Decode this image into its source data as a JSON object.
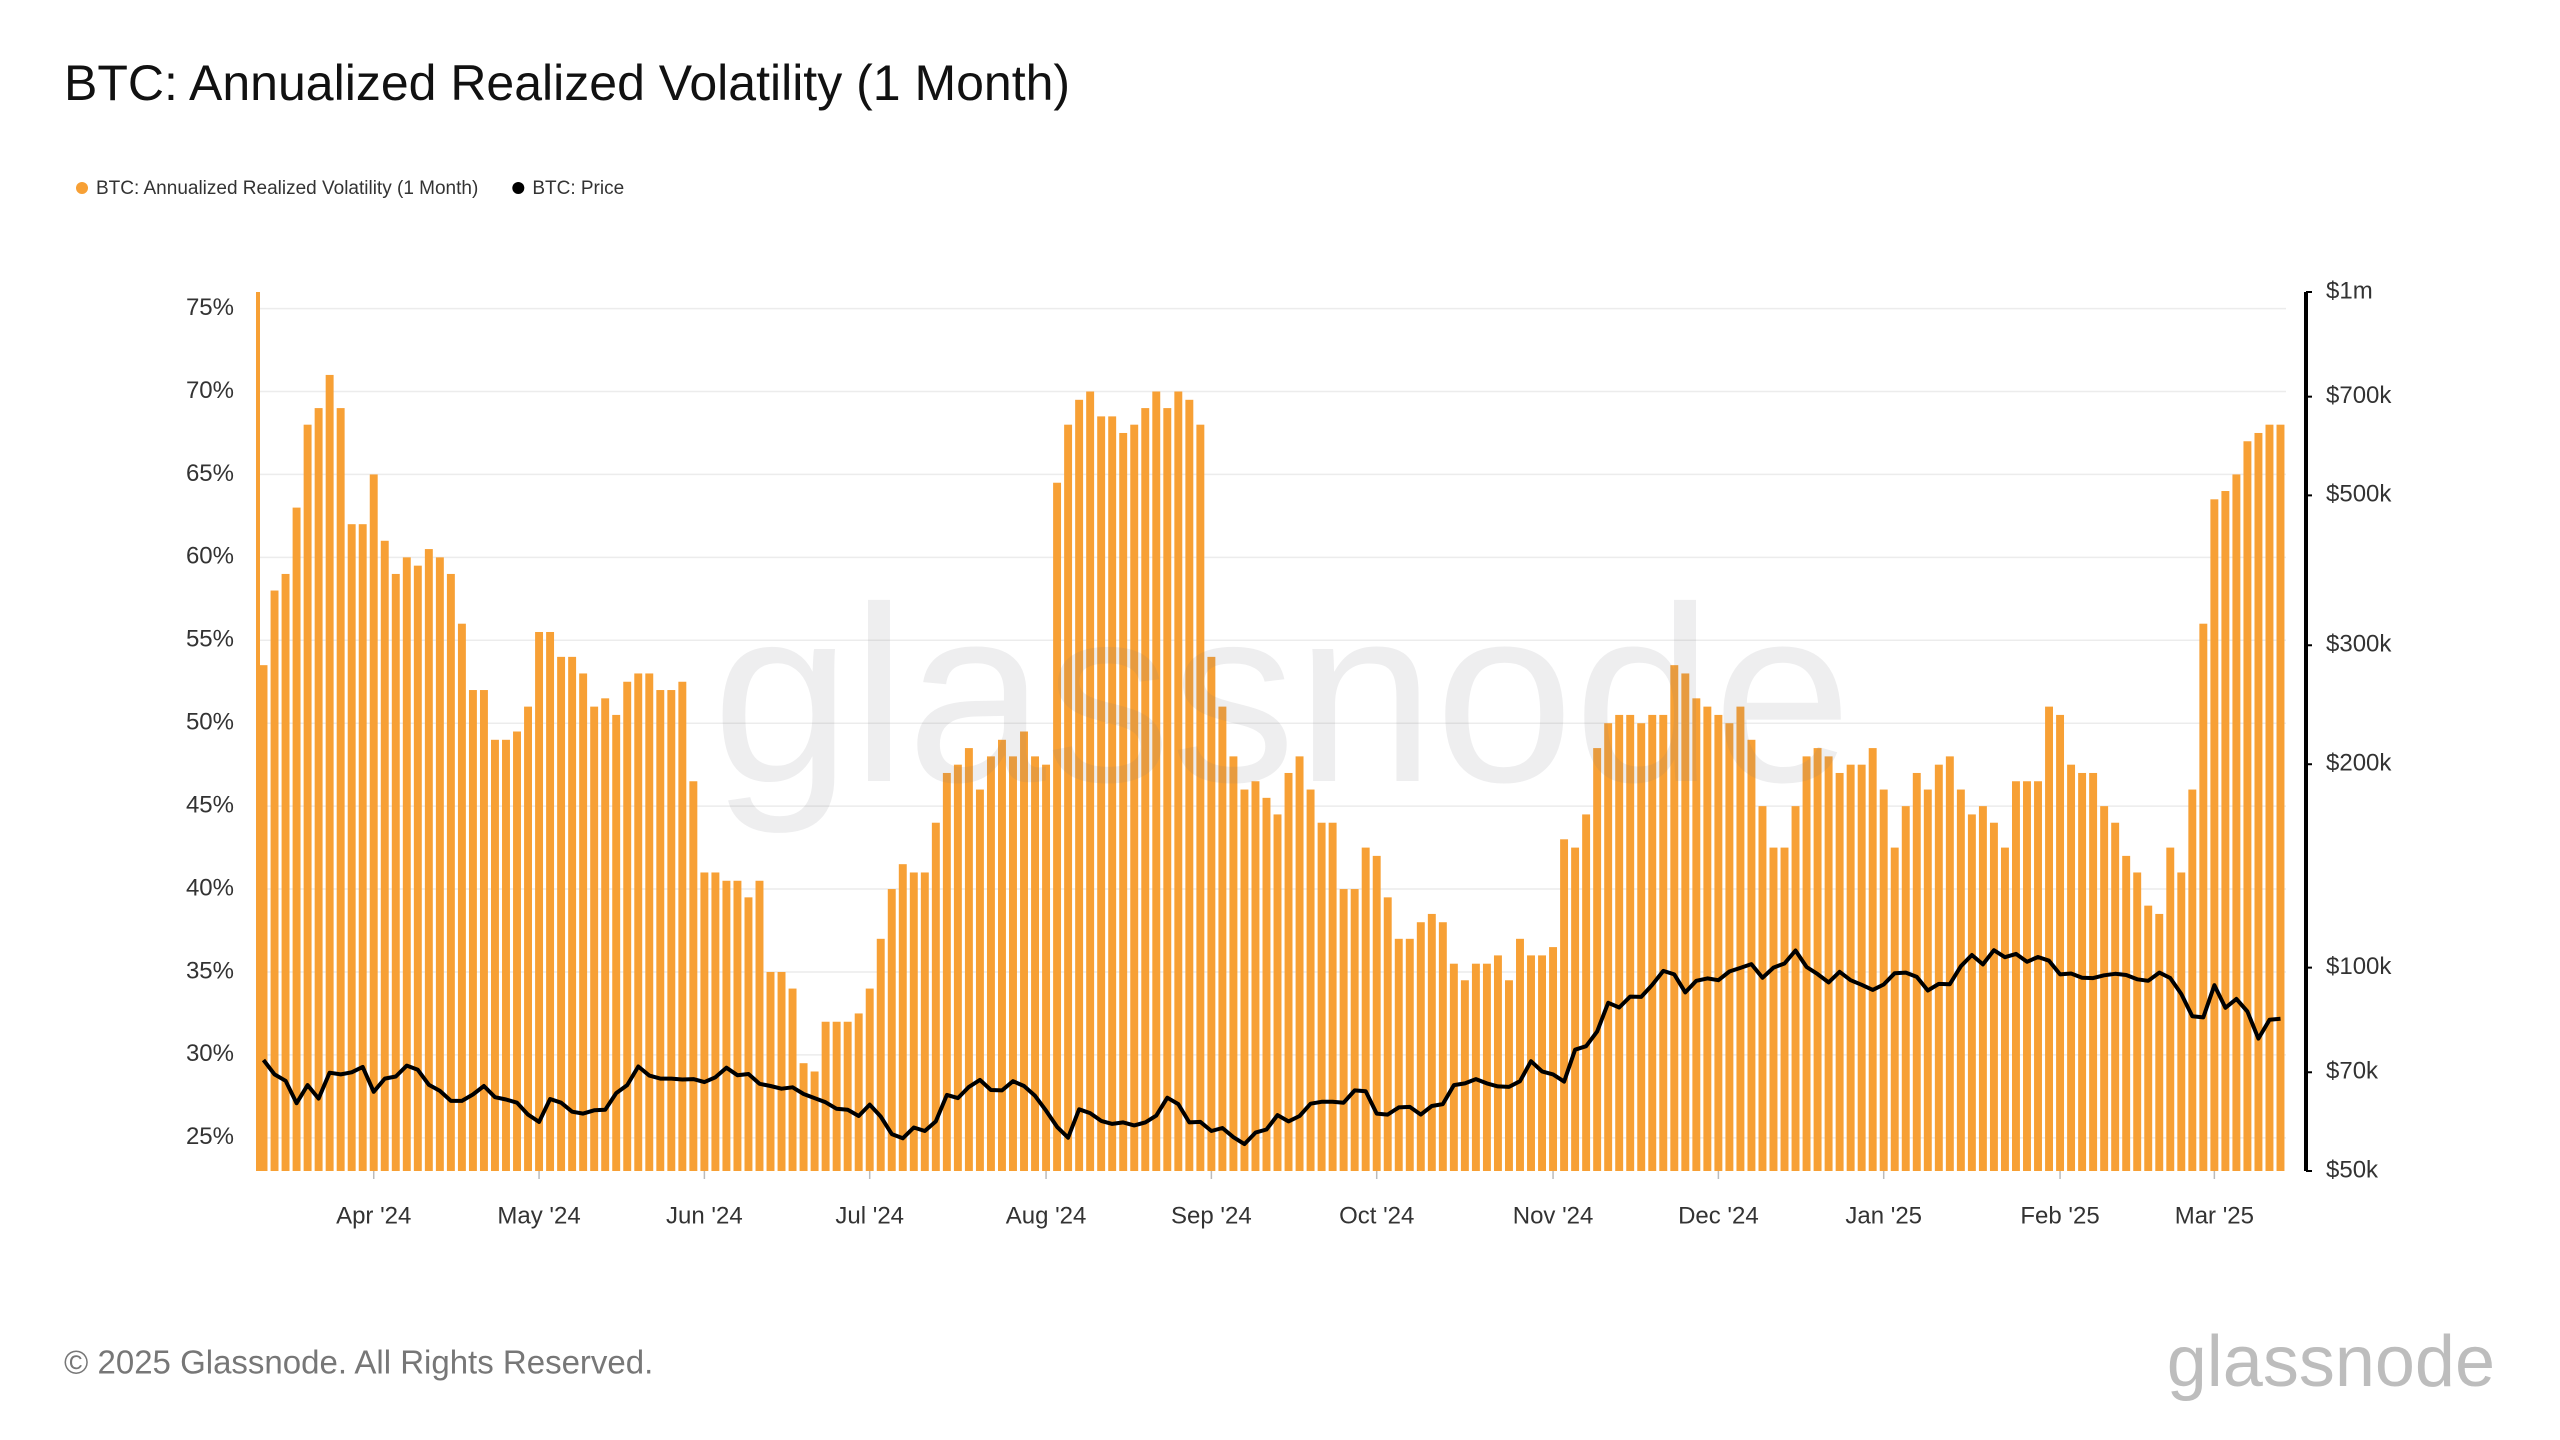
{
  "chart_data": {
    "type": "bar",
    "title": "BTC: Annualized Realized Volatility (1 Month)",
    "watermark": "glassnode",
    "footer": "© 2025 Glassnode. All Rights Reserved.",
    "logo": "glassnode",
    "legend": "top-left",
    "grid": true,
    "y2scale": "log",
    "categories": [
      null,
      null,
      null,
      null,
      null,
      null,
      null,
      null,
      null,
      null,
      "Apr '24",
      null,
      null,
      null,
      null,
      null,
      null,
      null,
      null,
      null,
      null,
      null,
      null,
      null,
      null,
      "May '24",
      null,
      null,
      null,
      null,
      null,
      null,
      null,
      null,
      null,
      null,
      null,
      null,
      null,
      null,
      "Jun '24",
      null,
      null,
      null,
      null,
      null,
      null,
      null,
      null,
      null,
      null,
      null,
      null,
      null,
      null,
      "Jul '24",
      null,
      null,
      null,
      null,
      null,
      null,
      null,
      null,
      null,
      null,
      null,
      null,
      null,
      null,
      null,
      "Aug '24",
      null,
      null,
      null,
      null,
      null,
      null,
      null,
      null,
      null,
      null,
      null,
      null,
      null,
      null,
      "Sep '24",
      null,
      null,
      null,
      null,
      null,
      null,
      null,
      null,
      null,
      null,
      null,
      null,
      null,
      null,
      "Oct '24",
      null,
      null,
      null,
      null,
      null,
      null,
      null,
      null,
      null,
      null,
      null,
      null,
      null,
      null,
      null,
      "Nov '24",
      null,
      null,
      null,
      null,
      null,
      null,
      null,
      null,
      null,
      null,
      null,
      null,
      null,
      null,
      "Dec '24",
      null,
      null,
      null,
      null,
      null,
      null,
      null,
      null,
      null,
      null,
      null,
      null,
      null,
      null,
      "Jan '25",
      null,
      null,
      null,
      null,
      null,
      null,
      null,
      null,
      null,
      null,
      null,
      null,
      null,
      null,
      null,
      "Feb '25",
      null,
      null,
      null,
      null,
      null,
      null,
      null,
      null,
      null,
      null,
      null,
      null,
      null,
      "Mar '25",
      null,
      null,
      null,
      null,
      null,
      null
    ],
    "ylim": [
      23,
      76
    ],
    "yticks": [
      {
        "value": 25,
        "label": "25%"
      },
      {
        "value": 30,
        "label": "30%"
      },
      {
        "value": 35,
        "label": "35%"
      },
      {
        "value": 40,
        "label": "40%"
      },
      {
        "value": 45,
        "label": "45%"
      },
      {
        "value": 50,
        "label": "50%"
      },
      {
        "value": 55,
        "label": "55%"
      },
      {
        "value": 60,
        "label": "60%"
      },
      {
        "value": 65,
        "label": "65%"
      },
      {
        "value": 70,
        "label": "70%"
      },
      {
        "value": 75,
        "label": "75%"
      }
    ],
    "y2lim": [
      50000,
      1000000
    ],
    "y2ticks": [
      {
        "value": 50000,
        "label": "$50k"
      },
      {
        "value": 70000,
        "label": "$70k"
      },
      {
        "value": 100000,
        "label": "$100k"
      },
      {
        "value": 200000,
        "label": "$200k"
      },
      {
        "value": 300000,
        "label": "$300k"
      },
      {
        "value": 500000,
        "label": "$500k"
      },
      {
        "value": 700000,
        "label": "$700k"
      },
      {
        "value": 1000000,
        "label": "$1m"
      }
    ],
    "series": [
      {
        "name": "BTC: Annualized Realized Volatility (1 Month)",
        "color": "#f7a035",
        "type": "bar",
        "values": [
          53.5,
          58,
          59,
          63,
          68,
          69,
          71,
          69,
          62,
          62,
          65,
          61,
          59,
          60,
          59.5,
          60.5,
          60,
          59,
          56,
          52,
          52,
          49,
          49,
          49.5,
          51,
          55.5,
          55.5,
          54,
          54,
          53,
          51,
          51.5,
          50.5,
          52.5,
          53,
          53,
          52,
          52,
          52.5,
          46.5,
          41,
          41,
          40.5,
          40.5,
          39.5,
          40.5,
          35,
          35,
          34,
          29.5,
          29,
          32,
          32,
          32,
          32.5,
          34,
          37,
          40,
          41.5,
          41,
          41,
          44,
          47,
          47.5,
          48.5,
          46,
          48,
          49,
          48,
          49.5,
          48,
          47.5,
          64.5,
          68,
          69.5,
          70,
          68.5,
          68.5,
          67.5,
          68,
          69,
          70,
          69,
          70,
          69.5,
          68,
          54,
          51,
          48,
          46,
          46.5,
          45.5,
          44.5,
          47,
          48,
          46,
          44,
          44,
          40,
          40,
          42.5,
          42,
          39.5,
          37,
          37,
          38,
          38.5,
          38,
          35.5,
          34.5,
          35.5,
          35.5,
          36,
          34.5,
          37,
          36,
          36,
          36.5,
          43,
          42.5,
          44.5,
          48.5,
          50,
          50.5,
          50.5,
          50,
          50.5,
          50.5,
          53.5,
          53,
          51.5,
          51,
          50.5,
          50,
          51,
          49,
          45,
          42.5,
          42.5,
          45,
          48,
          48.5,
          48,
          47,
          47.5,
          47.5,
          48.5,
          46,
          42.5,
          45,
          47,
          46,
          47.5,
          48,
          46,
          44.5,
          45,
          44,
          42.5,
          46.5,
          46.5,
          46.5,
          51,
          50.5,
          47.5,
          47,
          47,
          45,
          44,
          42,
          41,
          39,
          38.5,
          42.5,
          41,
          46,
          56,
          63.5,
          64,
          65,
          67,
          67.5,
          68,
          68
        ]
      },
      {
        "name": "BTC: Price",
        "color": "#000000",
        "type": "line",
        "axis": "y2",
        "values": [
          73000,
          69500,
          68000,
          63000,
          67000,
          64000,
          69900,
          69500,
          70000,
          71300,
          65500,
          68500,
          69000,
          71600,
          70600,
          67100,
          65700,
          63500,
          63500,
          64900,
          66800,
          64300,
          63800,
          63100,
          60600,
          59100,
          63900,
          63100,
          61200,
          60800,
          61500,
          61600,
          65200,
          67000,
          71400,
          69200,
          68500,
          68500,
          68300,
          68400,
          67700,
          68800,
          71100,
          69300,
          69600,
          67300,
          66800,
          66200,
          66500,
          65000,
          64100,
          63200,
          61800,
          61600,
          60300,
          62700,
          60200,
          56700,
          55900,
          58000,
          57300,
          59200,
          64800,
          64100,
          66600,
          68200,
          65900,
          65800,
          67900,
          66800,
          64600,
          61400,
          58100,
          56000,
          61700,
          60900,
          59300,
          58700,
          59000,
          58400,
          59000,
          60400,
          64200,
          62800,
          59000,
          59100,
          57300,
          57900,
          56100,
          54800,
          57000,
          57600,
          60500,
          59200,
          60300,
          62900,
          63300,
          63300,
          63100,
          65800,
          65600,
          60800,
          60600,
          62100,
          62200,
          60600,
          62400,
          62800,
          67000,
          67400,
          68400,
          67400,
          66700,
          66600,
          67900,
          72700,
          70200,
          69500,
          67800,
          75600,
          76500,
          80400,
          88700,
          87300,
          90600,
          90500,
          94300,
          98900,
          97700,
          91900,
          95600,
          96400,
          95800,
          98700,
          99900,
          101200,
          96600,
          100000,
          101400,
          106000,
          100200,
          97800,
          95100,
          98600,
          95800,
          94300,
          92700,
          94400,
          98100,
          98300,
          96900,
          92500,
          94600,
          94500,
          100500,
          104400,
          101100,
          106100,
          103600,
          104800,
          102000,
          103700,
          102400,
          97700,
          98000,
          96600,
          96500,
          97400,
          97900,
          97500,
          96100,
          95600,
          98300,
          96500,
          91400,
          84700,
          84400,
          94200,
          87200,
          89900,
          86100,
          78500,
          83700,
          84000
        ]
      }
    ]
  }
}
